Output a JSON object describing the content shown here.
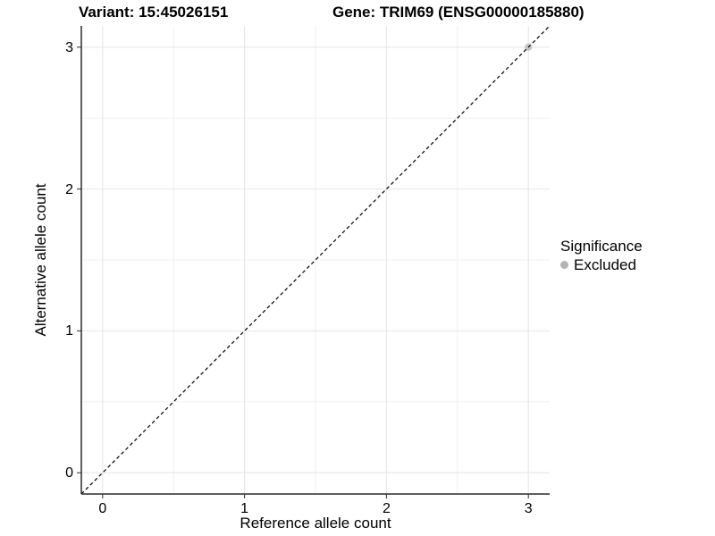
{
  "header": {
    "variant_title": "Variant: 15:45026151",
    "gene_title": "Gene: TRIM69 (ENSG00000185880)"
  },
  "legend": {
    "title": "Significance",
    "items": [
      {
        "label": "Excluded",
        "color": "#b3b3b3"
      }
    ]
  },
  "colors": {
    "grid_major": "#e4e4e4",
    "grid_minor": "#f1f1f1",
    "axis_line": "#2a2a2a",
    "tick_mark": "#2a2a2a",
    "reference_line": "#000000",
    "point": "#c0c0c0",
    "text": "#000000"
  },
  "chart_data": {
    "type": "scatter",
    "titles": [
      "Variant: 15:45026151",
      "Gene: TRIM69 (ENSG00000185880)"
    ],
    "xlabel": "Reference allele count",
    "ylabel": "Alternative allele count",
    "xlim": [
      -0.15,
      3.15
    ],
    "ylim": [
      -0.15,
      3.15
    ],
    "x_ticks": [
      0,
      1,
      2,
      3
    ],
    "y_ticks": [
      0,
      1,
      2,
      3
    ],
    "minor_gridlines": [
      0.5,
      1.5,
      2.5
    ],
    "grid": "major and minor, light gray on white",
    "legend_position": "right",
    "series": [
      {
        "name": "Excluded",
        "color": "#c0c0c0",
        "points": [
          {
            "x": 3,
            "y": 3
          }
        ]
      }
    ],
    "reference_line": {
      "slope": 1,
      "intercept": 0,
      "linetype": "dashed",
      "color": "#000000"
    }
  }
}
